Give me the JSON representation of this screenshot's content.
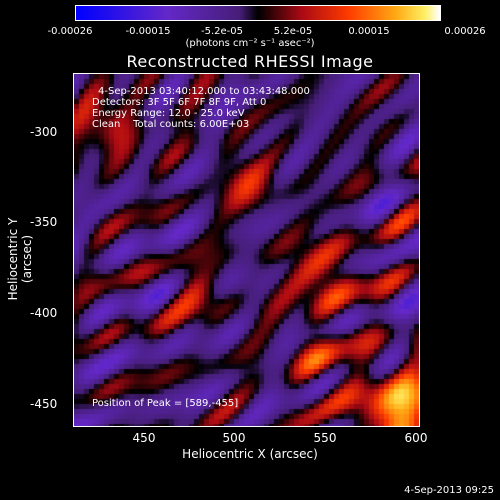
{
  "colorbar": {
    "ticks": [
      "-0.00026",
      "-0.00015",
      "-5.2e-05",
      "5.2e-05",
      "0.00015",
      "0.00026"
    ],
    "unit": "(photons cm⁻² s⁻¹ asec⁻²)"
  },
  "title": "Reconstructed RHESSI Image",
  "info": {
    "line1": "4-Sep-2013 03:40:12.000 to 03:43:48.000",
    "line2": "Detectors: 3F 5F 6F 7F 8F 9F, Att 0",
    "line3": "Energy Range: 12.0 - 25.0 keV",
    "line4": "Clean    Total counts: 6.00E+03",
    "peak": "Position of Peak = [589,-455]"
  },
  "axes": {
    "ylabel": "Heliocentric Y (arcsec)",
    "xlabel": "Heliocentric X (arcsec)",
    "yticks": [
      "-300",
      "-350",
      "-400",
      "-450"
    ],
    "xticks": [
      "450",
      "500",
      "550",
      "600"
    ]
  },
  "footer": "4-Sep-2013 09:25"
}
